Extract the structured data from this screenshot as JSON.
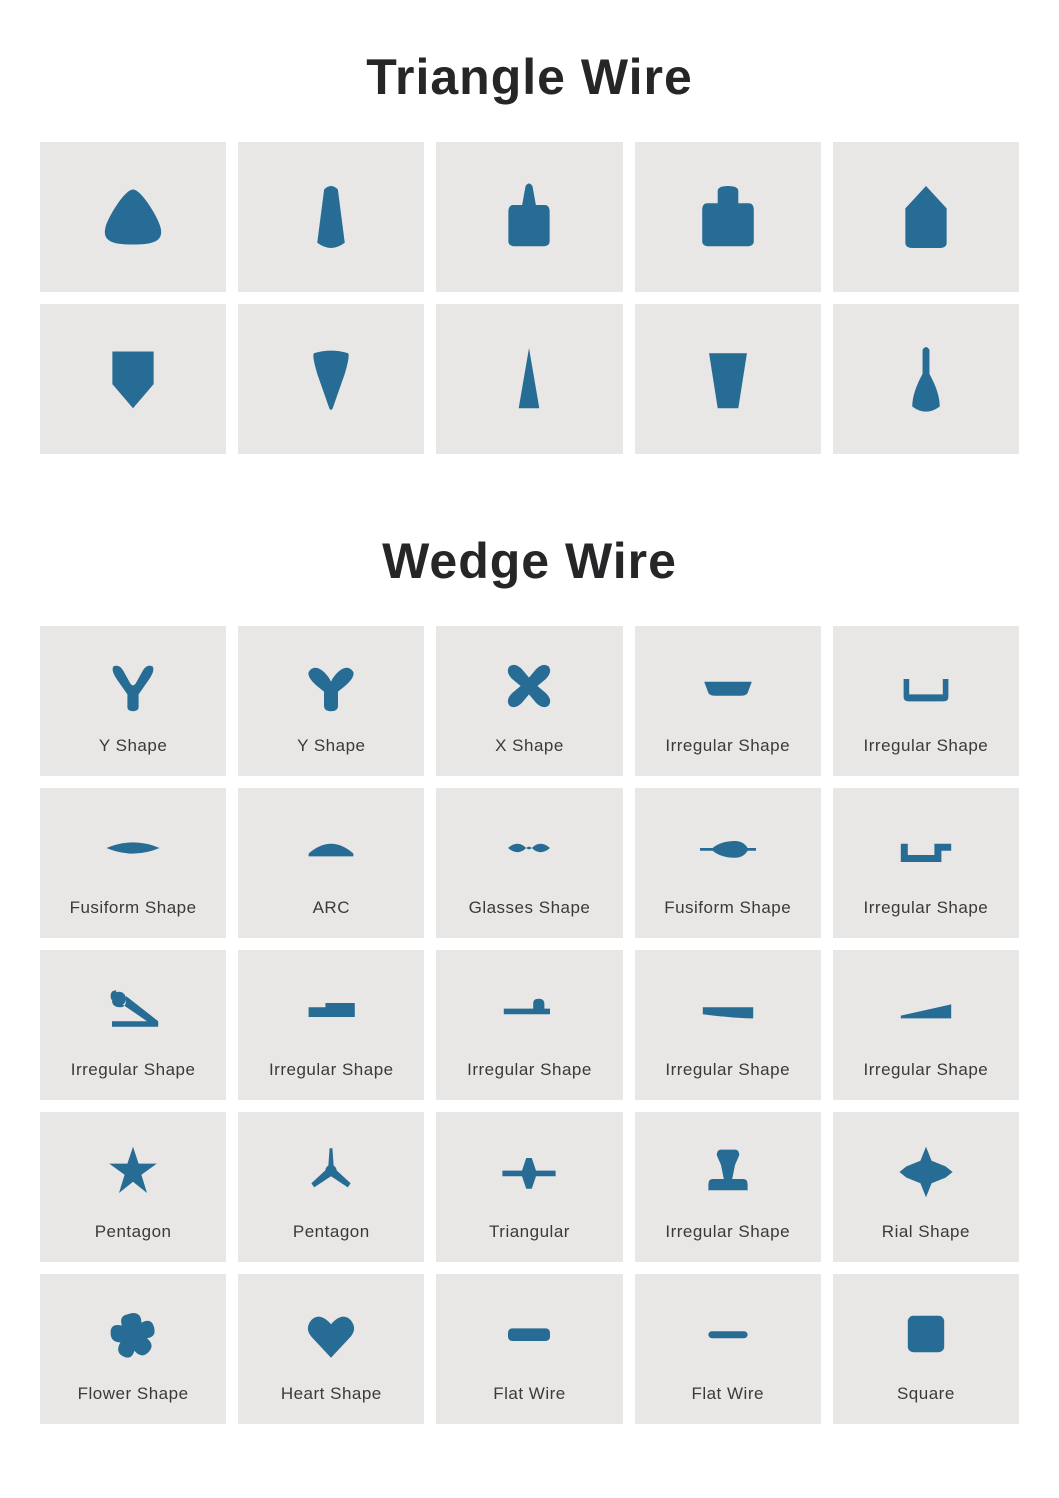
{
  "colors": {
    "shape": "#276c94",
    "tile": "#e9e7e5",
    "text": "#3a3a3a",
    "heading": "#262628",
    "page": "#ffffff"
  },
  "sections": [
    {
      "title": "Triangle Wire",
      "grid_class": "triangle-grid",
      "show_labels": false,
      "items": [
        {
          "shape": "triangle-rounded"
        },
        {
          "shape": "tall-cone"
        },
        {
          "shape": "paddle-narrow"
        },
        {
          "shape": "paddle-wide"
        },
        {
          "shape": "home-shape"
        },
        {
          "shape": "shield"
        },
        {
          "shape": "wedge-down"
        },
        {
          "shape": "spike"
        },
        {
          "shape": "trapezoid-tall"
        },
        {
          "shape": "bottle"
        }
      ]
    },
    {
      "title": "Wedge Wire",
      "grid_class": "wedge-grid",
      "show_labels": true,
      "items": [
        {
          "shape": "y-thin",
          "label": "Y Shape"
        },
        {
          "shape": "y-wide",
          "label": "Y Shape"
        },
        {
          "shape": "x-shape",
          "label": "X Shape"
        },
        {
          "shape": "tray-shallow",
          "label": "Irregular Shape"
        },
        {
          "shape": "tray-deep",
          "label": "Irregular Shape"
        },
        {
          "shape": "fusiform",
          "label": "Fusiform Shape"
        },
        {
          "shape": "arc",
          "label": "ARC"
        },
        {
          "shape": "glasses",
          "label": "Glasses Shape"
        },
        {
          "shape": "fusiform-stick",
          "label": "Fusiform Shape"
        },
        {
          "shape": "channel",
          "label": "Irregular Shape"
        },
        {
          "shape": "curl-wedge",
          "label": "Irregular Shape"
        },
        {
          "shape": "knife",
          "label": "Irregular Shape"
        },
        {
          "shape": "hammer",
          "label": "Irregular Shape"
        },
        {
          "shape": "wedge-low",
          "label": "Irregular Shape"
        },
        {
          "shape": "ramp",
          "label": "Irregular Shape"
        },
        {
          "shape": "star5",
          "label": "Pentagon"
        },
        {
          "shape": "tri-prop",
          "label": "Pentagon"
        },
        {
          "shape": "cross-wide",
          "label": "Triangular"
        },
        {
          "shape": "rail",
          "label": "Irregular Shape"
        },
        {
          "shape": "plus-diamond",
          "label": "Rial Shape"
        },
        {
          "shape": "flower",
          "label": "Flower Shape"
        },
        {
          "shape": "heart",
          "label": "Heart Shape"
        },
        {
          "shape": "flat-thick",
          "label": "Flat Wire"
        },
        {
          "shape": "flat-thin",
          "label": "Flat Wire"
        },
        {
          "shape": "square",
          "label": "Square"
        }
      ]
    }
  ]
}
